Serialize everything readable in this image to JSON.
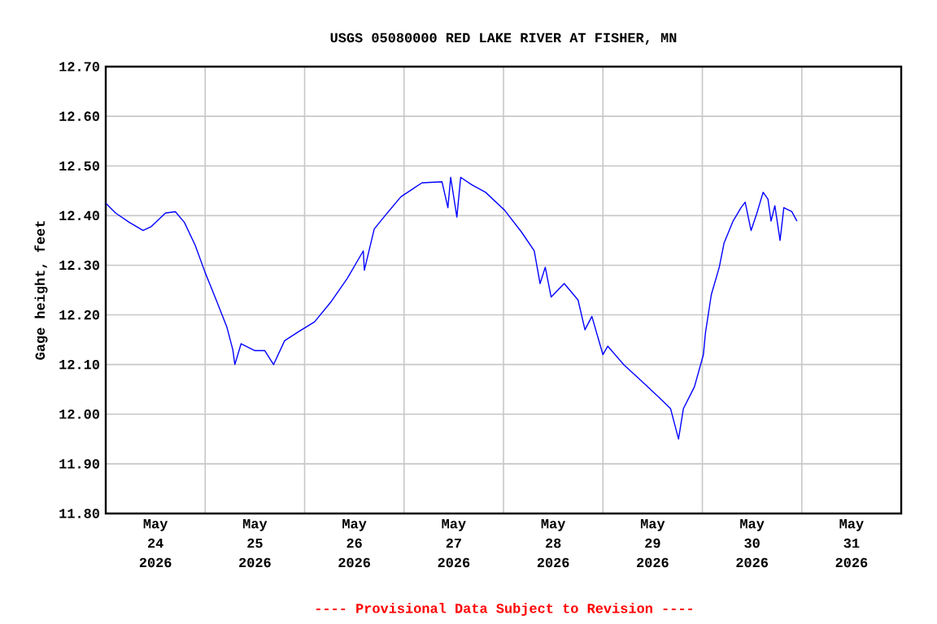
{
  "chart_data": {
    "type": "line",
    "title": "USGS 05080000 RED LAKE RIVER AT FISHER, MN",
    "ylabel": "Gage height, feet",
    "annotations": [
      "---- Provisional Data Subject to Revision ----"
    ],
    "color": "#0000ff",
    "grid": true,
    "xlim": [
      "2026-05-24T00:00",
      "2026-06-01T00:00"
    ],
    "ylim": [
      11.8,
      12.7
    ],
    "yticks": [
      {
        "value": 11.8,
        "label": "11.80"
      },
      {
        "value": 11.9,
        "label": "11.90"
      },
      {
        "value": 12.0,
        "label": "12.00"
      },
      {
        "value": 12.1,
        "label": "12.10"
      },
      {
        "value": 12.2,
        "label": "12.20"
      },
      {
        "value": 12.3,
        "label": "12.30"
      },
      {
        "value": 12.4,
        "label": "12.40"
      },
      {
        "value": 12.5,
        "label": "12.50"
      },
      {
        "value": 12.6,
        "label": "12.60"
      },
      {
        "value": 12.7,
        "label": "12.70"
      }
    ],
    "xticks": [
      {
        "value": "2026-05-25T00:00",
        "label": null
      },
      {
        "value": "2026-05-26T00:00",
        "label": null
      },
      {
        "value": "2026-05-27T00:00",
        "label": null
      },
      {
        "value": "2026-05-28T00:00",
        "label": null
      },
      {
        "value": "2026-05-29T00:00",
        "label": null
      },
      {
        "value": "2026-05-30T00:00",
        "label": null
      },
      {
        "value": "2026-05-31T00:00",
        "label": null
      },
      {
        "value": "2026-05-24T12:00",
        "label": "May 24 2026"
      },
      {
        "value": "2026-05-25T12:00",
        "label": "May 25 2026"
      },
      {
        "value": "2026-05-26T12:00",
        "label": "May 26 2026"
      },
      {
        "value": "2026-05-27T12:00",
        "label": "May 27 2026"
      },
      {
        "value": "2026-05-28T12:00",
        "label": "May 28 2026"
      },
      {
        "value": "2026-05-29T12:00",
        "label": "May 29 2026"
      },
      {
        "value": "2026-05-30T12:00",
        "label": "May 30 2026"
      },
      {
        "value": "2026-05-31T12:00",
        "label": "May 31 2026"
      }
    ],
    "x": [
      "2026-05-24T00:00",
      "2026-05-24T02:24",
      "2026-05-24T05:45",
      "2026-05-24T09:00",
      "2026-05-24T11:00",
      "2026-05-24T14:24",
      "2026-05-24T16:48",
      "2026-05-24T19:00",
      "2026-05-24T21:36",
      "2026-05-25T00:00",
      "2026-05-25T02:40",
      "2026-05-25T05:15",
      "2026-05-25T06:40",
      "2026-05-25T07:10",
      "2026-05-25T08:40",
      "2026-05-25T12:00",
      "2026-05-25T14:24",
      "2026-05-25T16:30",
      "2026-05-25T19:10",
      "2026-05-25T22:20",
      "2026-05-26T02:24",
      "2026-05-26T06:15",
      "2026-05-26T10:20",
      "2026-05-26T14:10",
      "2026-05-26T14:25",
      "2026-05-26T16:48",
      "2026-05-26T19:25",
      "2026-05-26T23:15",
      "2026-05-27T04:20",
      "2026-05-27T09:10",
      "2026-05-27T10:35",
      "2026-05-27T11:15",
      "2026-05-27T12:45",
      "2026-05-27T13:40",
      "2026-05-27T16:20",
      "2026-05-27T19:40",
      "2026-05-28T00:15",
      "2026-05-28T04:20",
      "2026-05-28T07:25",
      "2026-05-28T08:50",
      "2026-05-28T10:05",
      "2026-05-28T11:30",
      "2026-05-28T14:40",
      "2026-05-28T18:00",
      "2026-05-28T19:40",
      "2026-05-28T21:20",
      "2026-05-29T00:00",
      "2026-05-29T01:10",
      "2026-05-29T05:00",
      "2026-05-29T09:10",
      "2026-05-29T13:00",
      "2026-05-29T16:20",
      "2026-05-29T18:15",
      "2026-05-29T19:25",
      "2026-05-29T22:05",
      "2026-05-30T00:15",
      "2026-05-30T00:45",
      "2026-05-30T02:10",
      "2026-05-30T04:05",
      "2026-05-30T05:15",
      "2026-05-30T07:25",
      "2026-05-30T09:20",
      "2026-05-30T10:20",
      "2026-05-30T11:45",
      "2026-05-30T13:10",
      "2026-05-30T14:40",
      "2026-05-30T15:50",
      "2026-05-30T16:35",
      "2026-05-30T17:30",
      "2026-05-30T18:45",
      "2026-05-30T19:40",
      "2026-05-30T21:35",
      "2026-05-30T22:50"
    ],
    "values": [
      12.425,
      12.405,
      12.386,
      12.37,
      12.378,
      12.405,
      12.408,
      12.386,
      12.34,
      12.285,
      12.23,
      12.175,
      12.13,
      12.1,
      12.142,
      12.128,
      12.128,
      12.1,
      12.148,
      12.165,
      12.186,
      12.225,
      12.274,
      12.329,
      12.29,
      12.373,
      12.4,
      12.438,
      12.466,
      12.468,
      12.416,
      12.477,
      12.397,
      12.477,
      12.462,
      12.447,
      12.411,
      12.367,
      12.329,
      12.263,
      12.296,
      12.236,
      12.263,
      12.23,
      12.17,
      12.197,
      12.12,
      12.137,
      12.1,
      12.068,
      12.038,
      12.011,
      11.95,
      12.011,
      12.055,
      12.12,
      12.164,
      12.241,
      12.296,
      12.345,
      12.389,
      12.416,
      12.427,
      12.37,
      12.405,
      12.447,
      12.433,
      12.389,
      12.42,
      12.35,
      12.416,
      12.408,
      12.389
    ]
  }
}
